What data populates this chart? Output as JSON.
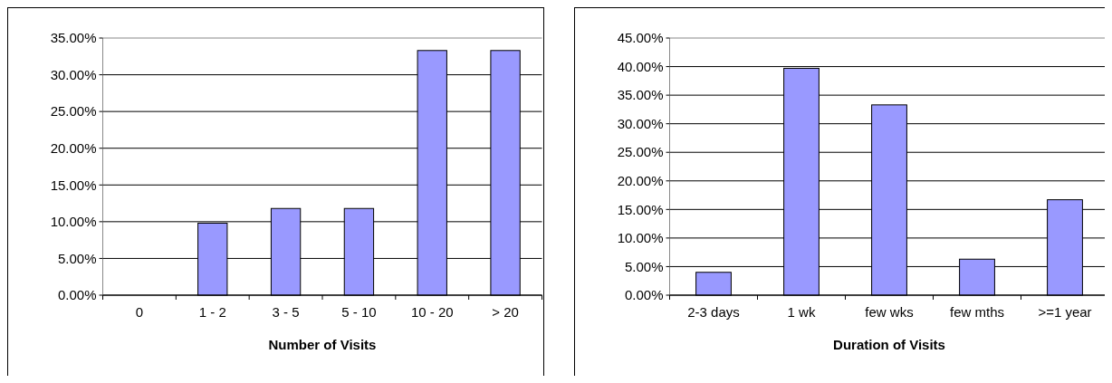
{
  "chart_data": [
    {
      "type": "bar",
      "xlabel": "Number of Visits",
      "categories": [
        "0",
        "1 - 2",
        "3 - 5",
        "5 - 10",
        "10 - 20",
        "> 20"
      ],
      "series": [
        {
          "color": "#9999ff",
          "values": [
            0,
            9.8,
            11.8,
            11.8,
            33.3,
            33.3
          ]
        }
      ],
      "ylim": [
        0,
        35
      ],
      "yticks": [
        {
          "value": 0,
          "label": "0.00%"
        },
        {
          "value": 5,
          "label": "5.00%"
        },
        {
          "value": 10,
          "label": "10.00%"
        },
        {
          "value": 15,
          "label": "15.00%"
        },
        {
          "value": 20,
          "label": "20.00%"
        },
        {
          "value": 25,
          "label": "25.00%"
        },
        {
          "value": 30,
          "label": "30.00%"
        },
        {
          "value": 35,
          "label": "35.00%"
        }
      ],
      "grid": "y"
    },
    {
      "type": "bar",
      "xlabel": "Duration of Visits",
      "categories": [
        "2-3 days",
        "1 wk",
        "few wks",
        "few mths",
        ">=1 year"
      ],
      "series": [
        {
          "color": "#9999ff",
          "values": [
            4.0,
            39.7,
            33.3,
            6.3,
            16.7
          ]
        }
      ],
      "ylim": [
        0,
        45
      ],
      "yticks": [
        {
          "value": 0,
          "label": "0.00%"
        },
        {
          "value": 5,
          "label": "5.00%"
        },
        {
          "value": 10,
          "label": "10.00%"
        },
        {
          "value": 15,
          "label": "15.00%"
        },
        {
          "value": 20,
          "label": "20.00%"
        },
        {
          "value": 25,
          "label": "25.00%"
        },
        {
          "value": 30,
          "label": "30.00%"
        },
        {
          "value": 35,
          "label": "35.00%"
        },
        {
          "value": 40,
          "label": "40.00%"
        },
        {
          "value": 45,
          "label": "45.00%"
        }
      ],
      "grid": "y"
    }
  ]
}
